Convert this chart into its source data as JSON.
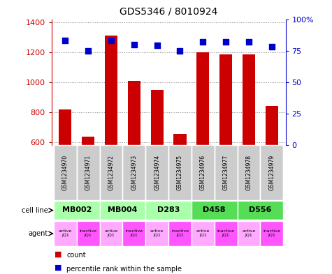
{
  "title": "GDS5346 / 8010924",
  "samples": [
    "GSM1234970",
    "GSM1234971",
    "GSM1234972",
    "GSM1234973",
    "GSM1234974",
    "GSM1234975",
    "GSM1234976",
    "GSM1234977",
    "GSM1234978",
    "GSM1234979"
  ],
  "counts": [
    820,
    635,
    1310,
    1010,
    950,
    658,
    1200,
    1185,
    1185,
    840
  ],
  "percentiles": [
    83,
    75,
    83,
    80,
    79,
    75,
    82,
    82,
    82,
    78
  ],
  "ylim_left": [
    580,
    1420
  ],
  "ylim_right": [
    0,
    100
  ],
  "yticks_left": [
    600,
    800,
    1000,
    1200,
    1400
  ],
  "yticks_right": [
    0,
    25,
    50,
    75,
    100
  ],
  "cell_lines": [
    {
      "label": "MB002",
      "cols": [
        0,
        1
      ],
      "color": "#aaffaa"
    },
    {
      "label": "MB004",
      "cols": [
        2,
        3
      ],
      "color": "#aaffaa"
    },
    {
      "label": "D283",
      "cols": [
        4,
        5
      ],
      "color": "#aaffaa"
    },
    {
      "label": "D458",
      "cols": [
        6,
        7
      ],
      "color": "#55dd55"
    },
    {
      "label": "D556",
      "cols": [
        8,
        9
      ],
      "color": "#55dd55"
    }
  ],
  "agents": [
    "active\nJQ1",
    "inactive\nJQ1",
    "active\nJQ1",
    "inactive\nJQ1",
    "active\nJQ1",
    "inactive\nJQ1",
    "active\nJQ1",
    "inactive\nJQ1",
    "active\nJQ1",
    "inactive\nJQ1"
  ],
  "agent_active_color": "#ffaaff",
  "agent_inactive_color": "#ff55ff",
  "bar_color": "#cc0000",
  "dot_color": "#0000cc",
  "grid_color": "#888888",
  "left_axis_color": "#cc0000",
  "right_axis_color": "#0000cc",
  "sample_bg_color": "#cccccc",
  "fig_width": 4.75,
  "fig_height": 3.93,
  "dpi": 100
}
